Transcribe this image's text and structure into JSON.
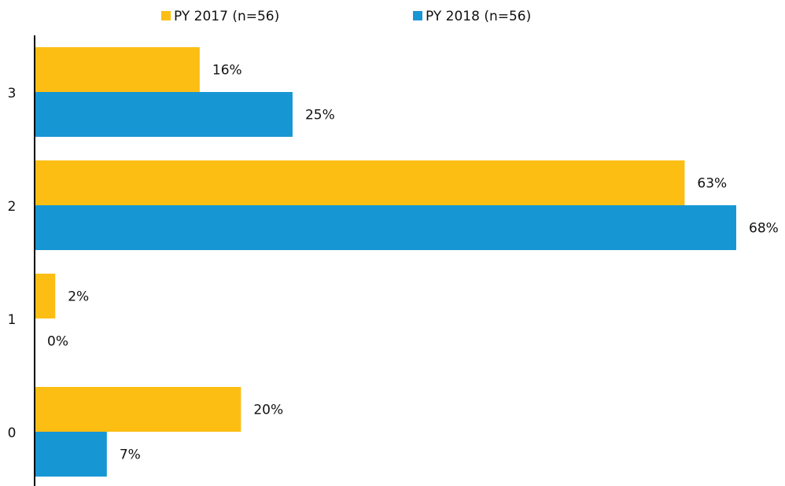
{
  "chart_data": {
    "type": "bar",
    "orientation": "horizontal",
    "categories": [
      "3",
      "2",
      "1",
      "0"
    ],
    "series": [
      {
        "name": "PY 2017 (n=56)",
        "color": "#fdbe14",
        "values": [
          16,
          63,
          2,
          20
        ],
        "value_labels": [
          "16%",
          "63%",
          "2%",
          "20%"
        ]
      },
      {
        "name": "PY 2018 (n=56)",
        "color": "#1796d4",
        "values": [
          25,
          68,
          0,
          7
        ],
        "value_labels": [
          "25%",
          "68%",
          "0%",
          "7%"
        ]
      }
    ],
    "legend": "top"
  }
}
